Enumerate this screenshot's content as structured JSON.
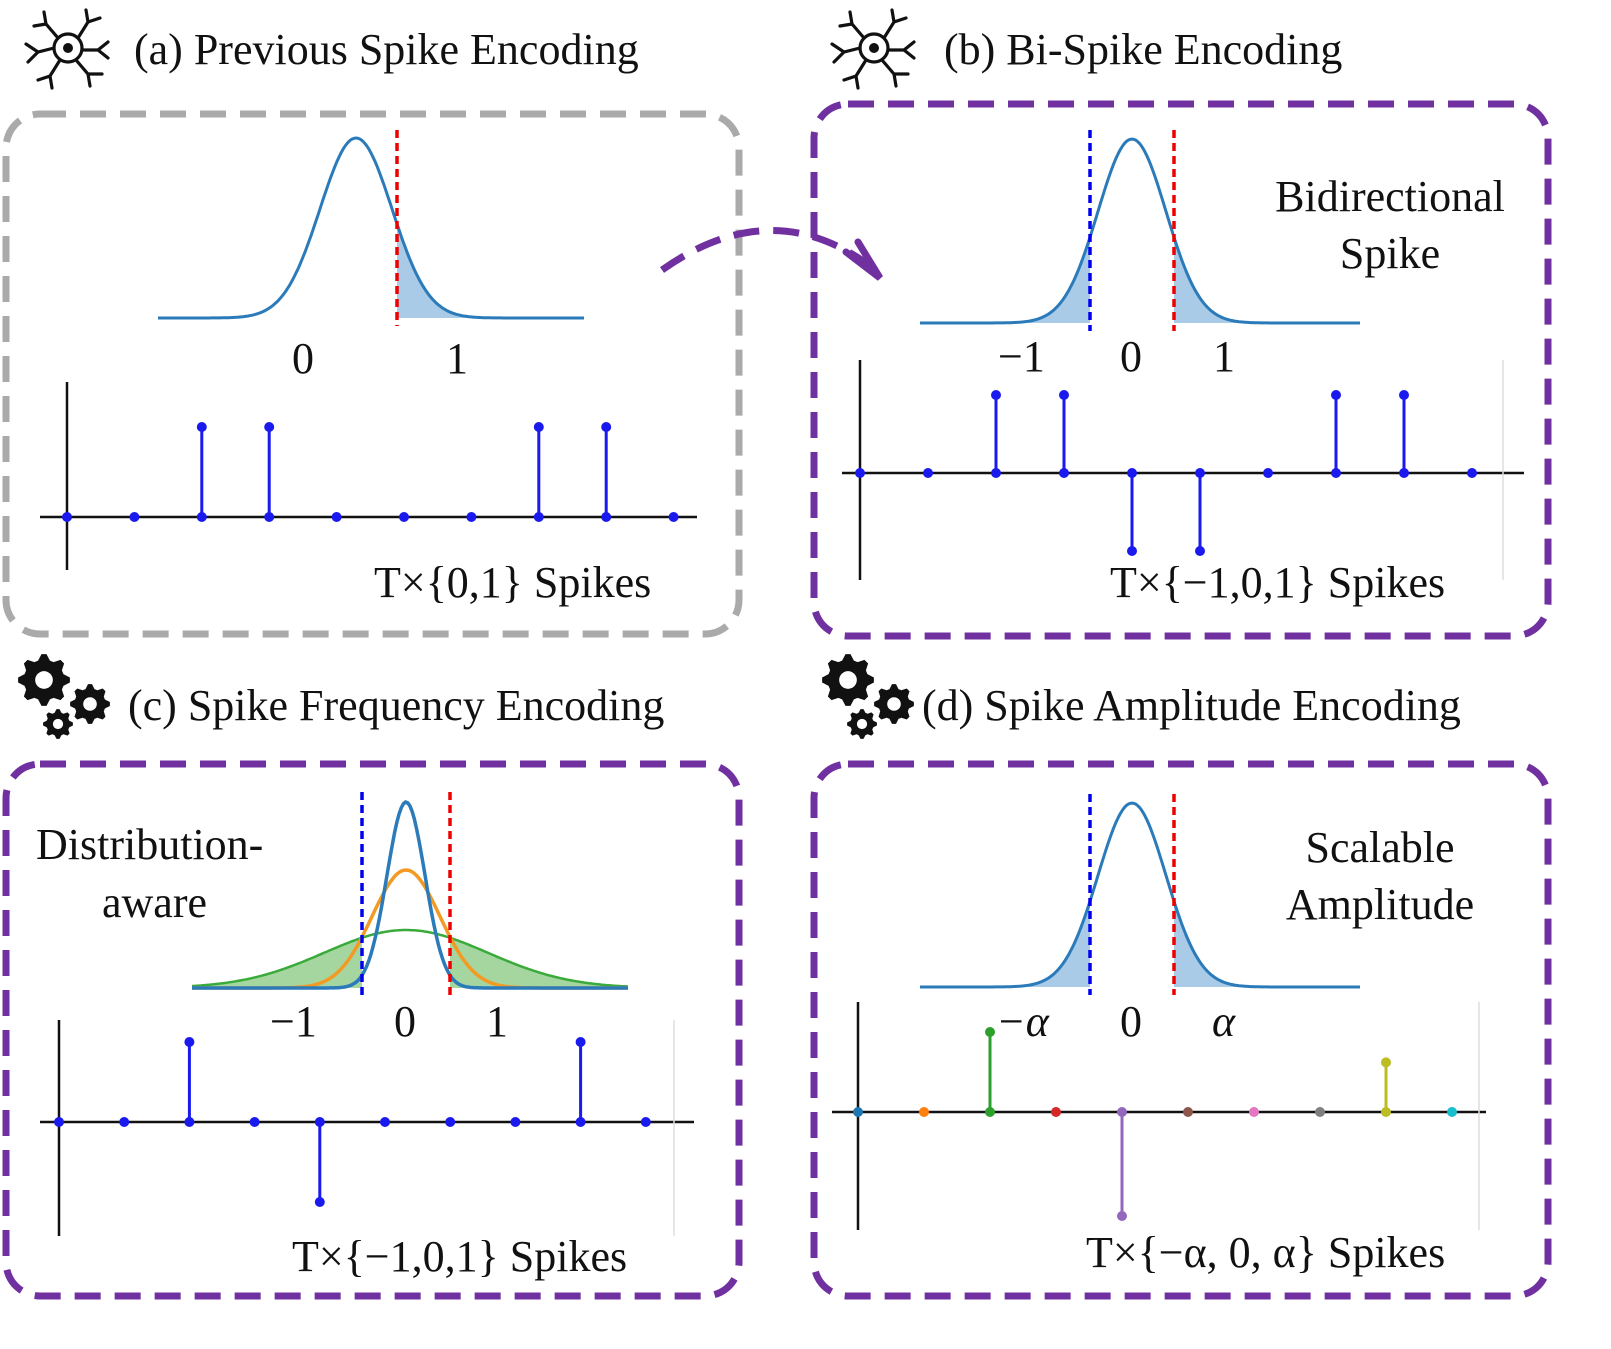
{
  "colors": {
    "gray_border": "#aaaaaa",
    "purple_border": "#7030a0",
    "curve_blue": "#2b7bba",
    "fill_blue": "#a9cbe7",
    "threshold_blue": "#0000ee",
    "threshold_red": "#ee0000",
    "curve_orange": "#f39a25",
    "curve_green": "#3aab3a",
    "fill_green": "#a6d6a0",
    "stem_blue": "#1a1aee"
  },
  "icons": {
    "panel_a": "neuron-icon",
    "panel_b": "neuron-icon",
    "panel_c": "gears-icon",
    "panel_d": "gears-icon",
    "connector": "dashed-curved-arrow"
  },
  "panels": {
    "a": {
      "title": "(a) Previous Spike Encoding",
      "ticks": [
        "0",
        "1"
      ],
      "caption": "T×{0,1} Spikes",
      "spikes": [
        0,
        0,
        1,
        1,
        0,
        0,
        0,
        1,
        1,
        0
      ]
    },
    "b": {
      "title": "(b) Bi-Spike Encoding",
      "label_lines": [
        "Bidirectional",
        "Spike"
      ],
      "ticks": [
        "−1",
        "0",
        "1"
      ],
      "caption": "T×{−1,0,1} Spikes",
      "spikes": [
        0,
        0,
        1,
        1,
        -1,
        -1,
        0,
        1,
        1,
        0
      ]
    },
    "c": {
      "title": "(c) Spike Frequency Encoding",
      "label_lines": [
        "Distribution-",
        "aware"
      ],
      "ticks": [
        "−1",
        "0",
        "1"
      ],
      "caption": "T×{−1,0,1} Spikes",
      "spikes": [
        0,
        0,
        1,
        0,
        -1,
        0,
        0,
        0,
        1,
        0
      ]
    },
    "d": {
      "title": "(d) Spike Amplitude Encoding",
      "label_lines": [
        "Scalable",
        "Amplitude"
      ],
      "ticks": [
        "−α",
        "0",
        "α"
      ],
      "caption": "T×{−α, 0, α} Spikes",
      "spikes": [
        0,
        0,
        1,
        0,
        -1.3,
        0,
        0,
        0,
        0.62,
        0
      ],
      "spike_colors": [
        "#1f77b4",
        "#ff7f0e",
        "#2ca02c",
        "#d62728",
        "#9467bd",
        "#8c564b",
        "#e377c2",
        "#7f7f7f",
        "#bcbd22",
        "#17becf"
      ]
    }
  }
}
